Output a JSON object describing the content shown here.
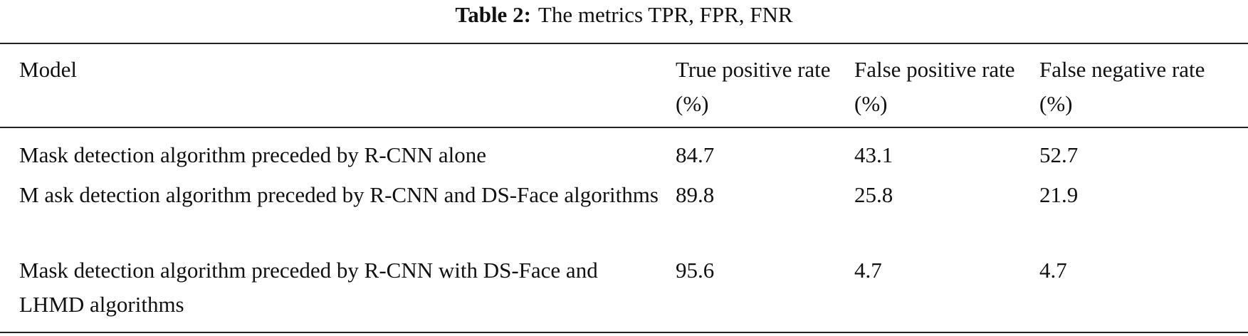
{
  "caption": {
    "label": "Table 2:",
    "text": "The metrics TPR, FPR, FNR"
  },
  "table": {
    "header": [
      "Model",
      "True positive rate (%)",
      "False positive rate (%)",
      "False negative rate (%)"
    ],
    "rows": [
      [
        "Mask detection algorithm preceded by R-CNN alone",
        84.7,
        43.1,
        52.7
      ],
      [
        "M ask detection algorithm preceded by R-CNN and DS-Face algorithms",
        89.8,
        25.8,
        21.9
      ],
      [
        "Mask detection algorithm preceded by R-CNN with DS-Face and LHMD algorithms",
        95.6,
        4.7,
        4.7
      ]
    ]
  }
}
